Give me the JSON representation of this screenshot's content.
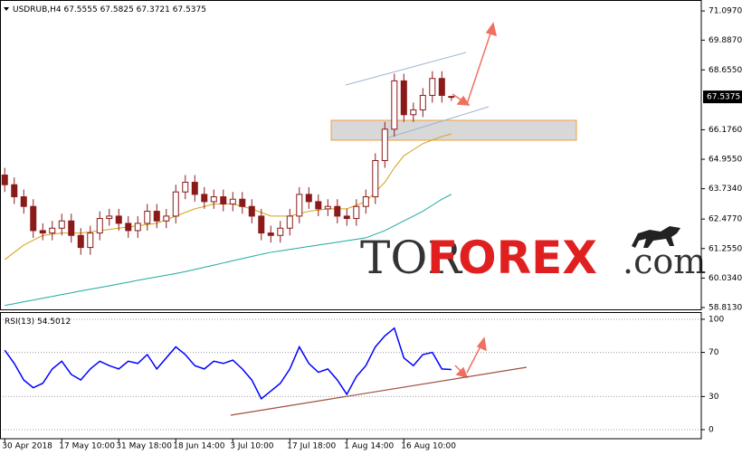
{
  "header": {
    "symbol": "USDRUB,H4"
  },
  "logo": {
    "part1": "TOR",
    "part2": "FOREX",
    "part3": ".com"
  },
  "chart_data": [
    {
      "type": "candlestick",
      "color": "#8b1a1a",
      "open": [
        64.3,
        63.9,
        63.4,
        63.0,
        62.0,
        61.9,
        62.1,
        62.4,
        61.8,
        61.3,
        61.9,
        62.5,
        62.6,
        62.3,
        62.0,
        62.3,
        62.8,
        62.4,
        62.6,
        63.6,
        64.0,
        63.5,
        63.2,
        63.4,
        63.1,
        63.3,
        63.0,
        62.6,
        61.9,
        61.8,
        62.1,
        62.6,
        63.5,
        63.2,
        62.9,
        63.0,
        62.6,
        62.5,
        63.0,
        63.4,
        64.9,
        66.2,
        68.2,
        66.8,
        67.0,
        67.6,
        68.3,
        67.5555
      ],
      "high": [
        64.6,
        64.2,
        63.7,
        63.3,
        62.3,
        62.4,
        62.7,
        62.7,
        62.1,
        62.2,
        62.8,
        62.9,
        62.9,
        62.6,
        62.6,
        63.1,
        63.1,
        62.9,
        63.9,
        64.3,
        64.3,
        63.8,
        63.7,
        63.7,
        63.6,
        63.6,
        63.3,
        62.9,
        62.2,
        62.4,
        62.9,
        63.8,
        63.8,
        63.5,
        63.3,
        63.3,
        62.9,
        63.3,
        63.7,
        65.2,
        66.5,
        68.5,
        68.5,
        67.3,
        67.9,
        68.6,
        68.6,
        67.5825
      ],
      "low": [
        63.6,
        63.1,
        62.7,
        61.7,
        61.6,
        61.6,
        61.8,
        61.5,
        61.0,
        61.0,
        61.6,
        62.2,
        62.0,
        61.7,
        61.7,
        62.0,
        62.1,
        62.1,
        62.3,
        63.3,
        63.2,
        62.9,
        62.9,
        62.8,
        62.8,
        62.7,
        62.3,
        61.6,
        61.5,
        61.5,
        61.8,
        62.3,
        62.9,
        62.6,
        62.6,
        62.3,
        62.2,
        62.2,
        62.7,
        63.1,
        64.6,
        65.9,
        66.5,
        66.5,
        66.7,
        67.3,
        67.3,
        67.3721
      ],
      "close": [
        63.9,
        63.4,
        63.0,
        62.0,
        61.9,
        62.1,
        62.4,
        61.8,
        61.3,
        61.9,
        62.5,
        62.6,
        62.3,
        62.0,
        62.3,
        62.8,
        62.4,
        62.6,
        63.6,
        64.0,
        63.5,
        63.2,
        63.4,
        63.1,
        63.3,
        63.0,
        62.6,
        61.9,
        61.8,
        62.1,
        62.6,
        63.5,
        63.2,
        62.9,
        63.0,
        62.6,
        62.5,
        63.0,
        63.4,
        64.9,
        66.2,
        68.2,
        66.8,
        67.0,
        67.6,
        68.3,
        67.6,
        67.5375
      ],
      "lines": [
        {
          "color": "#d4a017",
          "values": [
            60.8,
            61.1,
            61.4,
            61.6,
            61.8,
            61.85,
            61.9,
            61.9,
            61.9,
            61.95,
            62.0,
            62.05,
            62.1,
            62.15,
            62.2,
            62.25,
            62.3,
            62.45,
            62.6,
            62.75,
            62.9,
            63.0,
            63.1,
            63.1,
            63.1,
            63.0,
            62.9,
            62.75,
            62.6,
            62.6,
            62.6,
            62.7,
            62.8,
            62.85,
            62.9,
            62.9,
            62.9,
            63.05,
            63.2,
            63.6,
            64.0,
            64.6,
            65.1,
            65.35,
            65.6,
            65.75,
            65.9,
            66.0
          ]
        },
        {
          "color": "#20a8a0",
          "values": [
            58.9,
            58.97,
            59.05,
            59.12,
            59.2,
            59.27,
            59.35,
            59.42,
            59.5,
            59.57,
            59.64,
            59.71,
            59.79,
            59.86,
            59.94,
            60.01,
            60.08,
            60.15,
            60.22,
            60.3,
            60.39,
            60.48,
            60.57,
            60.66,
            60.75,
            60.84,
            60.93,
            61.02,
            61.1,
            61.16,
            61.22,
            61.28,
            61.34,
            61.4,
            61.46,
            61.52,
            61.58,
            61.64,
            61.7,
            61.85,
            62.0,
            62.2,
            62.4,
            62.6,
            62.8,
            63.05,
            63.3,
            63.5
          ]
        }
      ],
      "xlim": [
        -0.5,
        73.3
      ],
      "ylim": [
        58.7,
        71.55
      ],
      "yticks": [
        {
          "value": 71.097,
          "label": "71.0970"
        },
        {
          "value": 69.887,
          "label": "69.8870"
        },
        {
          "value": 68.655,
          "label": "68.6550"
        },
        {
          "value": 66.176,
          "label": "66.1760"
        },
        {
          "value": 64.955,
          "label": "64.9550"
        },
        {
          "value": 63.734,
          "label": "63.7340"
        },
        {
          "value": 62.477,
          "label": "62.4770"
        },
        {
          "value": 61.255,
          "label": "61.2550"
        },
        {
          "value": 60.034,
          "label": "60.0340"
        },
        {
          "value": 58.813,
          "label": "58.8130"
        }
      ]
    },
    {
      "type": "line",
      "title": "RSI(13)",
      "color": "#0000ff",
      "values": [
        72,
        60,
        45,
        38,
        42,
        55,
        62,
        50,
        45,
        55,
        62,
        58,
        55,
        62,
        60,
        68,
        55,
        65,
        75,
        68,
        58,
        55,
        62,
        60,
        63,
        55,
        45,
        28,
        35,
        42,
        55,
        75,
        60,
        52,
        55,
        45,
        32,
        48,
        58,
        75,
        85,
        92,
        65,
        58,
        68,
        70,
        55,
        54.5012
      ],
      "xlim": [
        -0.5,
        73.3
      ],
      "xticks": [
        {
          "value": 0,
          "label": "30 Apr 2018"
        },
        {
          "value": 6,
          "label": "17 May 10:00"
        },
        {
          "value": 12,
          "label": "31 May 18:00"
        },
        {
          "value": 18,
          "label": "18 Jun 14:00"
        },
        {
          "value": 24,
          "label": "3 Jul 10:00"
        },
        {
          "value": 30,
          "label": "17 Jul 18:00"
        },
        {
          "value": 36,
          "label": "1 Aug 14:00"
        },
        {
          "value": 42,
          "label": "16 Aug 10:00"
        }
      ],
      "ylim": [
        -8.2,
        105.7
      ],
      "yticks": [
        0,
        30,
        70,
        100
      ],
      "grid": true
    }
  ]
}
